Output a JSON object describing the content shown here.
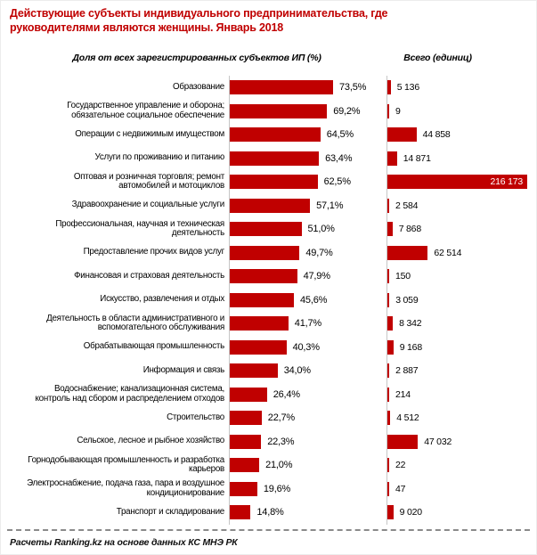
{
  "title": "Действующие субъекты индивидуального предпринимательства, где руководителями являются женщины. Январь 2018",
  "footer": "Расчеты Ranking.kz на основе данных  КС МНЭ РК",
  "colors": {
    "bar": "#C00000",
    "title_text": "#C00000",
    "axis_line": "#C6C6C6",
    "inside_label": "#FFFFFF"
  },
  "chart_data": {
    "type": "bar",
    "orientation": "horizontal",
    "title": "Действующие субъекты индивидуального предпринимательства, где руководителями являются женщины. Январь 2018",
    "grid": false,
    "legend_position": "none",
    "categories": [
      "Образование",
      "Государственное управление и оборона; обязательное социальное обеспечение",
      "Операции с недвижимым имуществом",
      "Услуги по проживанию и питанию",
      "Оптовая и розничная торговля; ремонт автомобилей и мотоциклов",
      "Здравоохранение и социальные услуги",
      "Профессиональная, научная и техническая деятельность",
      "Предоставление прочих видов услуг",
      "Финансовая и страховая деятельность",
      "Искусство, развлечения и отдых",
      "Деятельность в области административного и вспомогательного обслуживания",
      "Обрабатывающая промышленность",
      "Информация и связь",
      "Водоснабжение; канализационная система, контроль над сбором и распределением отходов",
      "Строительство",
      "Сельское, лесное и рыбное хозяйство",
      "Горнодобывающая промышленность и разработка карьеров",
      "Электроснабжение, подача газа, пара и воздушное кондиционирование",
      "Транспорт и складирование"
    ],
    "series": [
      {
        "name": "Доля от всех зарегистрированных  субъектов ИП (%)",
        "unit": "%",
        "xlim": [
          0,
          80
        ],
        "values": [
          73.5,
          69.2,
          64.5,
          63.4,
          62.5,
          57.1,
          51.0,
          49.7,
          47.9,
          45.6,
          41.7,
          40.3,
          34.0,
          26.4,
          22.7,
          22.3,
          21.0,
          19.6,
          14.8
        ],
        "labels": [
          "73,5%",
          "69,2%",
          "64,5%",
          "63,4%",
          "62,5%",
          "57,1%",
          "51,0%",
          "49,7%",
          "47,9%",
          "45,6%",
          "41,7%",
          "40,3%",
          "34,0%",
          "26,4%",
          "22,7%",
          "22,3%",
          "21,0%",
          "19,6%",
          "14,8%"
        ]
      },
      {
        "name": "Всего (единиц)",
        "unit": "единиц",
        "xlim": [
          0,
          216173
        ],
        "values": [
          5136,
          9,
          44858,
          14871,
          216173,
          2584,
          7868,
          62514,
          150,
          3059,
          8342,
          9168,
          2887,
          214,
          4512,
          47032,
          22,
          47,
          9020
        ],
        "labels": [
          "5 136",
          "9",
          "44 858",
          "14 871",
          "216 173",
          "2 584",
          "7 868",
          "62 514",
          "150",
          "3 059",
          "8 342",
          "9 168",
          "2 887",
          "214",
          "4 512",
          "47 032",
          "22",
          "47",
          "9 020"
        ]
      }
    ]
  }
}
